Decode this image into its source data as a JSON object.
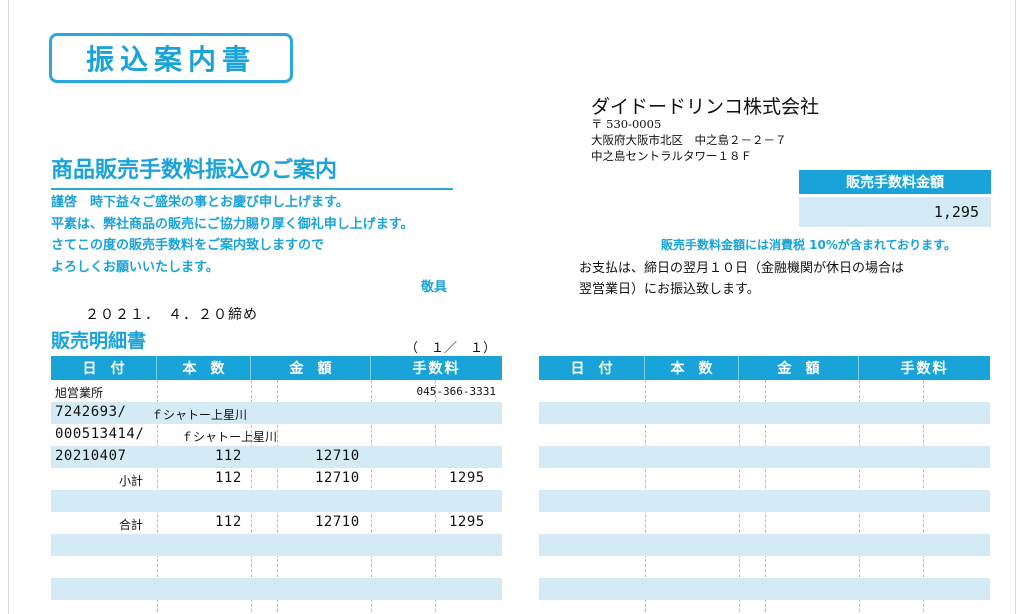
{
  "doc_title": "振込案内書",
  "heading": "商品販売手数料振込のご案内",
  "greeting": [
    "謹啓　時下益々ご盛栄の事とお慶び申し上げます。",
    "平素は、弊社商品の販売にご協力賜り厚く御礼申し上げます。",
    "さてこの度の販売手数料をご案内致しますので",
    "よろしくお願いいたします。"
  ],
  "closing": "敬具",
  "company": {
    "name": "ダイドードリンコ株式会社",
    "postal": "〒 530-0005",
    "address1": "大阪府大阪市北区　中之島２－２－７",
    "address2": "中之島セントラルタワー１８Ｆ"
  },
  "fee": {
    "label": "販売手数料金額",
    "amount": "1,295",
    "tax_note": "販売手数料金額には消費税 10%が含まれております。"
  },
  "payment_note": [
    "お支払は、締日の翌月１０日（金融機関が休日の場合は",
    "翌営業日）にお振込致します。"
  ],
  "close_date": "２０２１．　４．２０締め",
  "statement_title": "販売明細書",
  "page_no": "（　１／　１）",
  "columns": [
    "日付",
    "本数",
    "金額",
    "手数料"
  ],
  "ledger": {
    "office": "旭営業所",
    "phone": "045-366-3331",
    "row1_code": "7242693/",
    "row1_name": "ｆシャトー上星川",
    "row2_code": "000513414/",
    "row2_name": "ｆシャトー上星川",
    "row3_date": "20210407",
    "row3_qty": "112",
    "row3_amount": "12710",
    "subtotal_label": "小計",
    "subtotal_qty": "112",
    "subtotal_amount": "12710",
    "subtotal_fee": "1295",
    "total_label": "合計",
    "total_qty": "112",
    "total_amount": "12710",
    "total_fee": "1295"
  }
}
